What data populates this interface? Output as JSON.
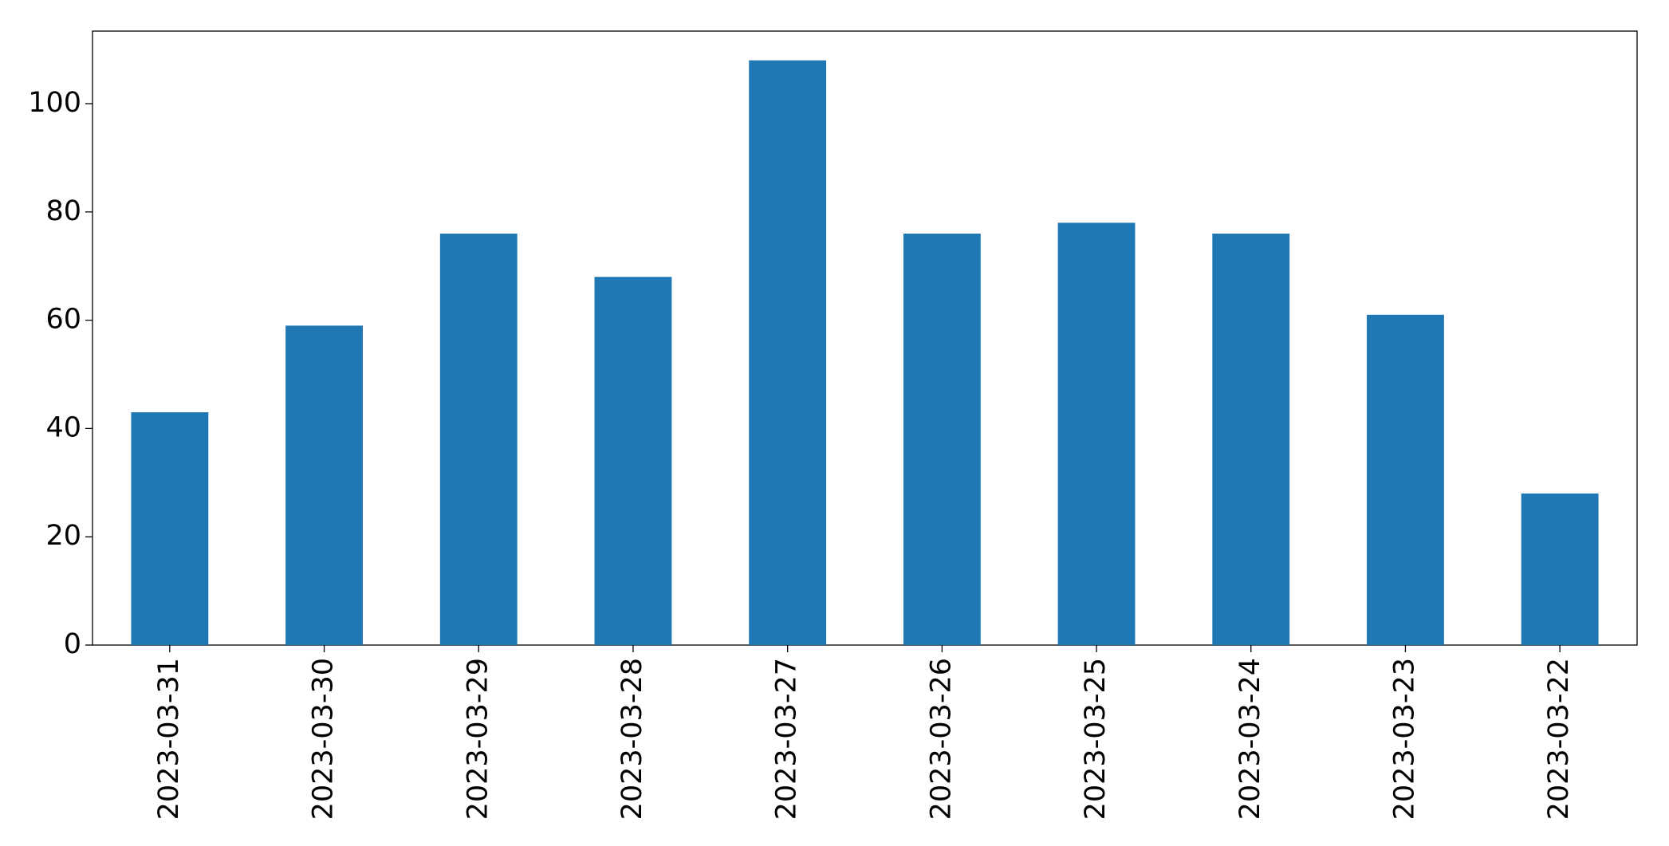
{
  "chart_data": {
    "type": "bar",
    "categories": [
      "2023-03-31",
      "2023-03-30",
      "2023-03-29",
      "2023-03-28",
      "2023-03-27",
      "2023-03-26",
      "2023-03-25",
      "2023-03-24",
      "2023-03-23",
      "2023-03-22"
    ],
    "values": [
      43,
      59,
      76,
      68,
      108,
      76,
      78,
      76,
      61,
      28
    ],
    "color": "#1f77b4",
    "ylim": [
      0,
      113.4
    ],
    "yticks": [
      0,
      20,
      40,
      60,
      80,
      100
    ],
    "grid": false
  }
}
